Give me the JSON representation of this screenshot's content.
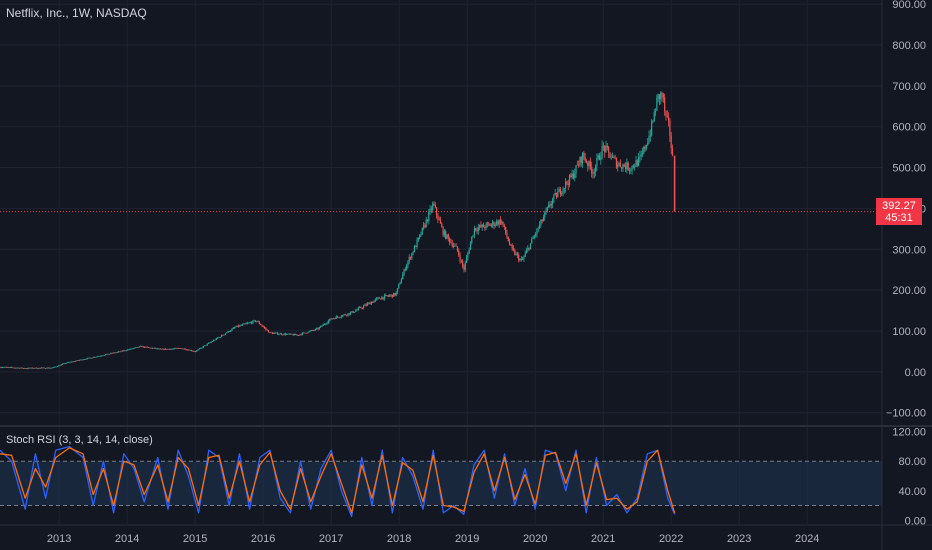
{
  "title": "Netflix, Inc., 1W, NASDAQ",
  "indicator_title": "Stoch RSI (3, 3, 14, 14, close)",
  "last_price": "392.27",
  "countdown": "45:31",
  "colors": {
    "background": "#131722",
    "grid": "#1f2330",
    "text": "#b2b5be",
    "up": "#26a69a",
    "down": "#ef5350",
    "price_line": "#f23645",
    "stoch_k": "#2962ff",
    "stoch_d": "#ff6d00",
    "band_fill": "#1f3553"
  },
  "chart_data": [
    {
      "type": "candlestick",
      "title": "Netflix, Inc., 1W, NASDAQ",
      "y_ticks": [
        "900.00",
        "800.00",
        "700.00",
        "600.00",
        "500.00",
        "400.00",
        "300.00",
        "200.00",
        "100.00",
        "0.00",
        "−100.00"
      ],
      "ylim": [
        -130,
        910
      ],
      "x_ticks": [
        "2013",
        "2014",
        "2015",
        "2016",
        "2017",
        "2018",
        "2019",
        "2020",
        "2021",
        "2022",
        "2023",
        "2024"
      ],
      "xlim": [
        2012.13,
        2025.1
      ],
      "last_price": 392.27,
      "price_path": [
        [
          2012.13,
          12
        ],
        [
          2012.5,
          9
        ],
        [
          2012.9,
          10
        ],
        [
          2013.1,
          22
        ],
        [
          2013.5,
          36
        ],
        [
          2013.9,
          50
        ],
        [
          2014.2,
          62
        ],
        [
          2014.5,
          55
        ],
        [
          2014.8,
          58
        ],
        [
          2015.0,
          50
        ],
        [
          2015.3,
          80
        ],
        [
          2015.6,
          110
        ],
        [
          2015.9,
          125
        ],
        [
          2016.1,
          95
        ],
        [
          2016.5,
          90
        ],
        [
          2016.8,
          105
        ],
        [
          2017.0,
          130
        ],
        [
          2017.3,
          145
        ],
        [
          2017.7,
          180
        ],
        [
          2017.95,
          190
        ],
        [
          2018.1,
          260
        ],
        [
          2018.3,
          330
        ],
        [
          2018.5,
          410
        ],
        [
          2018.65,
          340
        ],
        [
          2018.85,
          300
        ],
        [
          2018.95,
          250
        ],
        [
          2019.1,
          350
        ],
        [
          2019.35,
          360
        ],
        [
          2019.5,
          370
        ],
        [
          2019.65,
          300
        ],
        [
          2019.8,
          270
        ],
        [
          2019.95,
          320
        ],
        [
          2020.1,
          370
        ],
        [
          2020.25,
          420
        ],
        [
          2020.4,
          450
        ],
        [
          2020.55,
          480
        ],
        [
          2020.7,
          530
        ],
        [
          2020.85,
          490
        ],
        [
          2021.0,
          550
        ],
        [
          2021.2,
          510
        ],
        [
          2021.4,
          500
        ],
        [
          2021.55,
          520
        ],
        [
          2021.7,
          590
        ],
        [
          2021.8,
          670
        ],
        [
          2021.87,
          680
        ],
        [
          2021.92,
          620
        ],
        [
          2021.97,
          600
        ],
        [
          2022.02,
          520
        ],
        [
          2022.05,
          392.27
        ]
      ]
    },
    {
      "type": "line",
      "title": "Stoch RSI (3, 3, 14, 14, close)",
      "y_ticks": [
        "120.00",
        "80.00",
        "40.00",
        "0.00"
      ],
      "ylim": [
        -5,
        125
      ],
      "bands": [
        20,
        80
      ],
      "xlim": [
        2012.13,
        2025.1
      ],
      "series": [
        {
          "name": "K",
          "x": [
            2012.13,
            2012.3,
            2012.5,
            2012.65,
            2012.8,
            2012.95,
            2013.15,
            2013.35,
            2013.5,
            2013.65,
            2013.8,
            2013.95,
            2014.1,
            2014.25,
            2014.45,
            2014.6,
            2014.75,
            2014.9,
            2015.05,
            2015.2,
            2015.35,
            2015.5,
            2015.65,
            2015.8,
            2015.95,
            2016.1,
            2016.25,
            2016.4,
            2016.55,
            2016.7,
            2016.85,
            2017.0,
            2017.15,
            2017.3,
            2017.45,
            2017.6,
            2017.75,
            2017.9,
            2018.05,
            2018.2,
            2018.35,
            2018.5,
            2018.65,
            2018.8,
            2018.95,
            2019.1,
            2019.25,
            2019.4,
            2019.55,
            2019.7,
            2019.85,
            2020.0,
            2020.15,
            2020.3,
            2020.45,
            2020.6,
            2020.75,
            2020.9,
            2021.05,
            2021.2,
            2021.35,
            2021.5,
            2021.65,
            2021.8,
            2021.95,
            2022.05
          ],
          "values": [
            95,
            80,
            15,
            90,
            30,
            95,
            100,
            85,
            20,
            80,
            10,
            90,
            70,
            25,
            85,
            15,
            95,
            60,
            10,
            95,
            85,
            20,
            90,
            15,
            85,
            95,
            30,
            10,
            80,
            15,
            70,
            95,
            40,
            5,
            85,
            20,
            95,
            10,
            85,
            60,
            15,
            95,
            10,
            20,
            8,
            75,
            95,
            30,
            90,
            20,
            70,
            15,
            95,
            90,
            40,
            95,
            10,
            85,
            20,
            35,
            10,
            30,
            90,
            95,
            30,
            8
          ]
        },
        {
          "name": "D",
          "x": [
            2012.13,
            2012.3,
            2012.5,
            2012.65,
            2012.8,
            2012.95,
            2013.15,
            2013.35,
            2013.5,
            2013.65,
            2013.8,
            2013.95,
            2014.1,
            2014.25,
            2014.45,
            2014.6,
            2014.75,
            2014.9,
            2015.05,
            2015.2,
            2015.35,
            2015.5,
            2015.65,
            2015.8,
            2015.95,
            2016.1,
            2016.25,
            2016.4,
            2016.55,
            2016.7,
            2016.85,
            2017.0,
            2017.15,
            2017.3,
            2017.45,
            2017.6,
            2017.75,
            2017.9,
            2018.05,
            2018.2,
            2018.35,
            2018.5,
            2018.65,
            2018.8,
            2018.95,
            2019.1,
            2019.25,
            2019.4,
            2019.55,
            2019.7,
            2019.85,
            2020.0,
            2020.15,
            2020.3,
            2020.45,
            2020.6,
            2020.75,
            2020.9,
            2021.05,
            2021.2,
            2021.35,
            2021.5,
            2021.65,
            2021.8,
            2021.95,
            2022.05
          ],
          "values": [
            90,
            88,
            30,
            70,
            45,
            85,
            98,
            90,
            35,
            70,
            20,
            80,
            75,
            35,
            75,
            25,
            85,
            70,
            20,
            85,
            88,
            30,
            80,
            25,
            75,
            92,
            40,
            15,
            70,
            25,
            60,
            90,
            50,
            10,
            75,
            30,
            88,
            20,
            78,
            68,
            25,
            88,
            20,
            18,
            12,
            65,
            90,
            40,
            85,
            28,
            62,
            22,
            88,
            92,
            50,
            90,
            20,
            78,
            28,
            30,
            15,
            25,
            80,
            95,
            40,
            10
          ]
        }
      ]
    }
  ]
}
